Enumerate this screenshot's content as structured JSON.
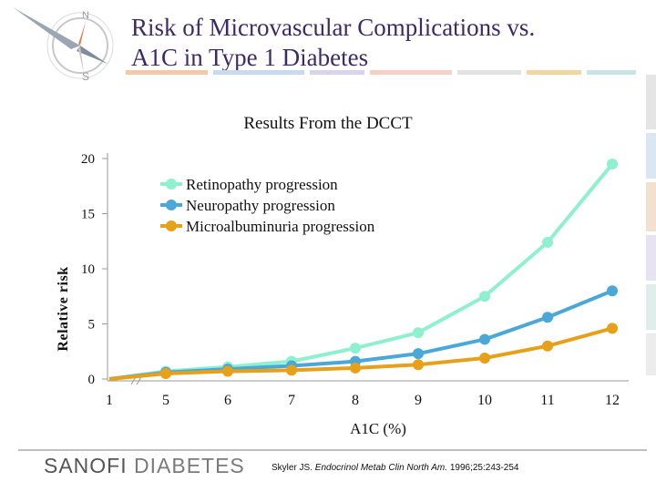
{
  "slide": {
    "title_line1": "Risk of Microvascular Complications vs.",
    "title_line2": "A1C in Type 1 Diabetes",
    "subtitle": "Results From the DCCT"
  },
  "footer": {
    "logo_part1": "SANOFI",
    "logo_part2": "DIABETES",
    "citation_author": "Skyler JS.",
    "citation_journal": "Endocrinol Metab Clin North Am.",
    "citation_ref": "1996;25:243-254"
  },
  "colors": {
    "title": "#3b2a6a",
    "retinopathy": "#8ff0cf",
    "neuropathy": "#4aa8d8",
    "microalbuminuria": "#e6a01a"
  },
  "chart_data": {
    "type": "line",
    "title": "Results From the DCCT",
    "xlabel": "A1C (%)",
    "ylabel": "Relative risk",
    "x": [
      1,
      5,
      6,
      7,
      8,
      9,
      10,
      11,
      12
    ],
    "yticks": [
      0,
      5,
      10,
      15,
      20
    ],
    "ylim": [
      0,
      20
    ],
    "legend_position": "top-center",
    "axis_break": true,
    "series": [
      {
        "name": "Retinopathy progression",
        "color": "#8ff0cf",
        "y": [
          0,
          0.7,
          1.1,
          1.6,
          2.8,
          4.2,
          7.5,
          12.4,
          19.5
        ]
      },
      {
        "name": "Neuropathy progression",
        "color": "#4aa8d8",
        "y": [
          0,
          0.6,
          0.9,
          1.2,
          1.6,
          2.3,
          3.6,
          5.6,
          8.0
        ]
      },
      {
        "name": "Microalbuminuria progression",
        "color": "#e6a01a",
        "y": [
          0,
          0.5,
          0.7,
          0.8,
          1.0,
          1.3,
          1.9,
          3.0,
          4.6
        ]
      }
    ]
  }
}
